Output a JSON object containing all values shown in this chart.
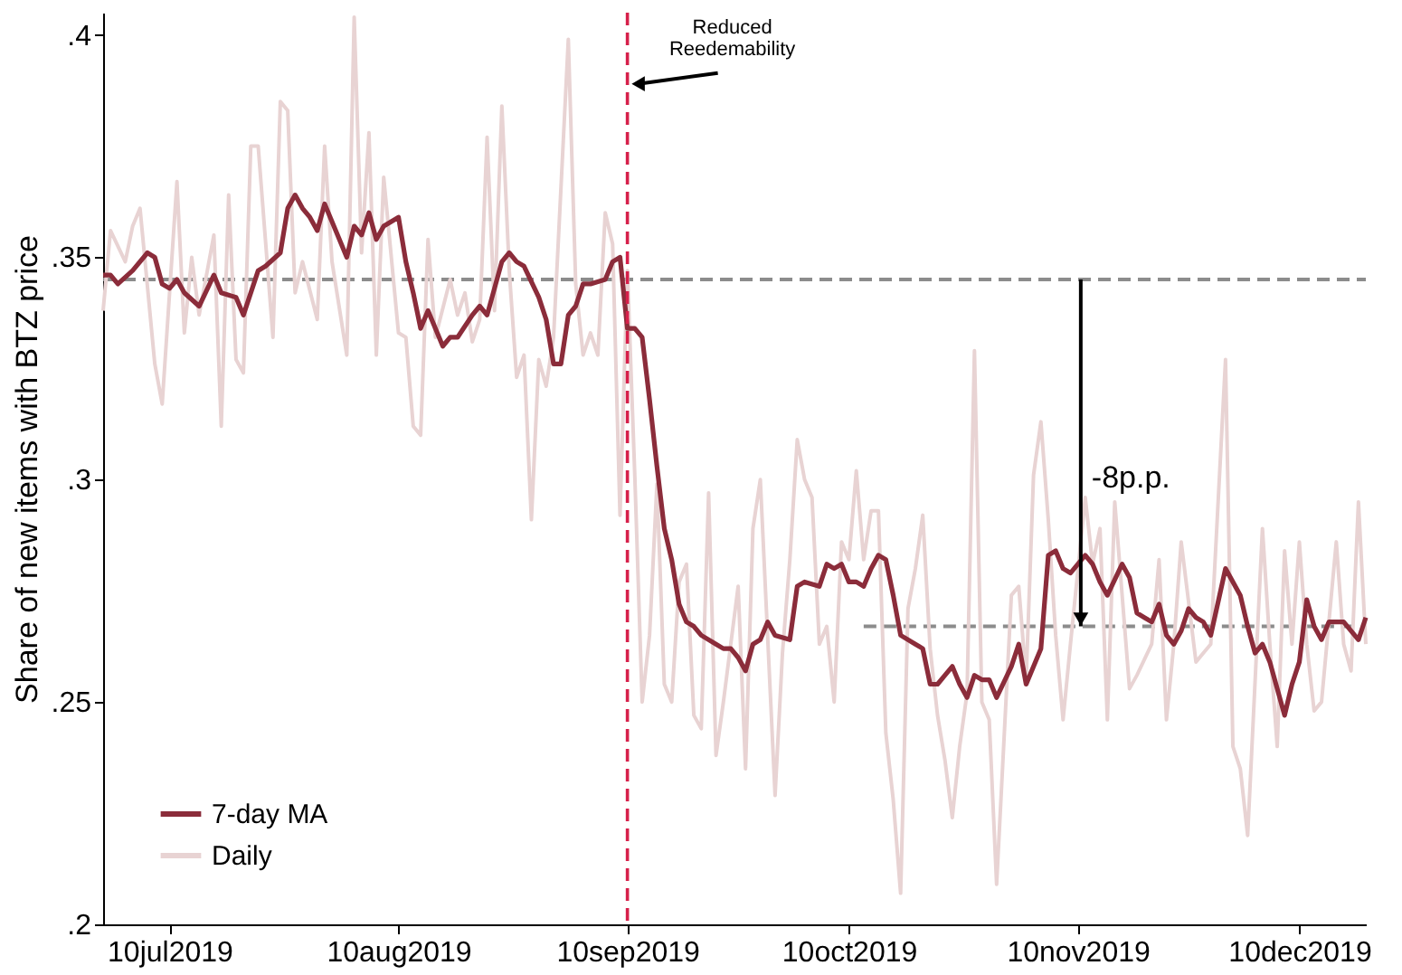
{
  "chart_data": {
    "type": "line",
    "ylabel": "Share of new items with BTZ price",
    "xlim": [
      "2019-07-01",
      "2019-12-19"
    ],
    "xticks": [
      {
        "value": "2019-07-10",
        "label": "10jul2019"
      },
      {
        "value": "2019-08-10",
        "label": "10aug2019"
      },
      {
        "value": "2019-09-10",
        "label": "10sep2019"
      },
      {
        "value": "2019-10-10",
        "label": "10oct2019"
      },
      {
        "value": "2019-11-10",
        "label": "10nov2019"
      },
      {
        "value": "2019-12-10",
        "label": "10dec2019"
      }
    ],
    "ylim": [
      0.2,
      0.405
    ],
    "yticks": [
      {
        "value": 0.2,
        "label": ".2"
      },
      {
        "value": 0.25,
        "label": ".25"
      },
      {
        "value": 0.3,
        "label": ".3"
      },
      {
        "value": 0.35,
        "label": ".35"
      },
      {
        "value": 0.4,
        "label": ".4"
      }
    ],
    "grid": false,
    "legend": "bottom left",
    "series": [
      {
        "name": "7-day MA",
        "color": "#8b2c3a",
        "line_style": "solid",
        "x": [
          "2019-07-01",
          "2019-07-02",
          "2019-07-03",
          "2019-07-05",
          "2019-07-07",
          "2019-07-08",
          "2019-07-09",
          "2019-07-10",
          "2019-07-11",
          "2019-07-12",
          "2019-07-14",
          "2019-07-16",
          "2019-07-17",
          "2019-07-19",
          "2019-07-20",
          "2019-07-22",
          "2019-07-23",
          "2019-07-25",
          "2019-07-26",
          "2019-07-27",
          "2019-07-28",
          "2019-07-29",
          "2019-07-30",
          "2019-07-31",
          "2019-08-02",
          "2019-08-03",
          "2019-08-04",
          "2019-08-05",
          "2019-08-06",
          "2019-08-07",
          "2019-08-08",
          "2019-08-10",
          "2019-08-11",
          "2019-08-12",
          "2019-08-13",
          "2019-08-14",
          "2019-08-16",
          "2019-08-17",
          "2019-08-18",
          "2019-08-20",
          "2019-08-21",
          "2019-08-22",
          "2019-08-23",
          "2019-08-24",
          "2019-08-25",
          "2019-08-26",
          "2019-08-27",
          "2019-08-29",
          "2019-08-30",
          "2019-08-31",
          "2019-09-01",
          "2019-09-02",
          "2019-09-03",
          "2019-09-04",
          "2019-09-05",
          "2019-09-07",
          "2019-09-08",
          "2019-09-09",
          "2019-09-10",
          "2019-09-11",
          "2019-09-12",
          "2019-09-13",
          "2019-09-14",
          "2019-09-15",
          "2019-09-16",
          "2019-09-17",
          "2019-09-18",
          "2019-09-19",
          "2019-09-20",
          "2019-09-22",
          "2019-09-23",
          "2019-09-24",
          "2019-09-25",
          "2019-09-26",
          "2019-09-27",
          "2019-09-28",
          "2019-09-29",
          "2019-09-30",
          "2019-10-02",
          "2019-10-03",
          "2019-10-04",
          "2019-10-06",
          "2019-10-07",
          "2019-10-08",
          "2019-10-09",
          "2019-10-10",
          "2019-10-11",
          "2019-10-12",
          "2019-10-13",
          "2019-10-14",
          "2019-10-15",
          "2019-10-16",
          "2019-10-17",
          "2019-10-19",
          "2019-10-20",
          "2019-10-21",
          "2019-10-22",
          "2019-10-23",
          "2019-10-24",
          "2019-10-25",
          "2019-10-26",
          "2019-10-27",
          "2019-10-28",
          "2019-10-29",
          "2019-10-30",
          "2019-11-01",
          "2019-11-02",
          "2019-11-03",
          "2019-11-05",
          "2019-11-06",
          "2019-11-07",
          "2019-11-08",
          "2019-11-09",
          "2019-11-11",
          "2019-11-12",
          "2019-11-13",
          "2019-11-14",
          "2019-11-16",
          "2019-11-17",
          "2019-11-18",
          "2019-11-19",
          "2019-11-20",
          "2019-11-21",
          "2019-11-22",
          "2019-11-23",
          "2019-11-24",
          "2019-11-25",
          "2019-11-26",
          "2019-11-27",
          "2019-11-28",
          "2019-11-30",
          "2019-12-02",
          "2019-12-03",
          "2019-12-04",
          "2019-12-05",
          "2019-12-06",
          "2019-12-08",
          "2019-12-09",
          "2019-12-10",
          "2019-12-11",
          "2019-12-12",
          "2019-12-13",
          "2019-12-14",
          "2019-12-16",
          "2019-12-18",
          "2019-12-19"
        ],
        "values": [
          0.346,
          0.346,
          0.344,
          0.347,
          0.351,
          0.35,
          0.344,
          0.343,
          0.345,
          0.342,
          0.339,
          0.346,
          0.342,
          0.341,
          0.337,
          0.347,
          0.348,
          0.351,
          0.361,
          0.364,
          0.361,
          0.359,
          0.356,
          0.362,
          0.354,
          0.35,
          0.357,
          0.355,
          0.36,
          0.354,
          0.357,
          0.359,
          0.349,
          0.342,
          0.334,
          0.338,
          0.33,
          0.332,
          0.332,
          0.337,
          0.339,
          0.337,
          0.343,
          0.349,
          0.351,
          0.349,
          0.348,
          0.341,
          0.336,
          0.326,
          0.326,
          0.337,
          0.339,
          0.344,
          0.344,
          0.345,
          0.349,
          0.35,
          0.334,
          0.334,
          0.332,
          0.318,
          0.303,
          0.289,
          0.282,
          0.272,
          0.268,
          0.267,
          0.265,
          0.263,
          0.262,
          0.262,
          0.26,
          0.257,
          0.263,
          0.264,
          0.268,
          0.265,
          0.264,
          0.276,
          0.277,
          0.276,
          0.281,
          0.28,
          0.281,
          0.277,
          0.277,
          0.276,
          0.28,
          0.283,
          0.282,
          0.274,
          0.265,
          0.263,
          0.262,
          0.254,
          0.254,
          0.256,
          0.258,
          0.254,
          0.251,
          0.256,
          0.255,
          0.255,
          0.251,
          0.258,
          0.263,
          0.254,
          0.262,
          0.283,
          0.284,
          0.28,
          0.279,
          0.283,
          0.281,
          0.277,
          0.274,
          0.281,
          0.278,
          0.27,
          0.269,
          0.268,
          0.272,
          0.265,
          0.263,
          0.266,
          0.271,
          0.269,
          0.268,
          0.265,
          0.28,
          0.274,
          0.267,
          0.261,
          0.263,
          0.259,
          0.247,
          0.254,
          0.259,
          0.273,
          0.267,
          0.264,
          0.268,
          0.268,
          0.264,
          0.269
        ]
      },
      {
        "name": "Daily",
        "color": "#e8d3d3",
        "line_style": "solid",
        "x": [
          "2019-07-01",
          "2019-07-02",
          "2019-07-04",
          "2019-07-05",
          "2019-07-06",
          "2019-07-08",
          "2019-07-09",
          "2019-07-11",
          "2019-07-12",
          "2019-07-13",
          "2019-07-14",
          "2019-07-16",
          "2019-07-17",
          "2019-07-18",
          "2019-07-19",
          "2019-07-20",
          "2019-07-21",
          "2019-07-22",
          "2019-07-24",
          "2019-07-25",
          "2019-07-26",
          "2019-07-27",
          "2019-07-28",
          "2019-07-30",
          "2019-07-31",
          "2019-08-01",
          "2019-08-03",
          "2019-08-04",
          "2019-08-05",
          "2019-08-06",
          "2019-08-07",
          "2019-08-08",
          "2019-08-10",
          "2019-08-11",
          "2019-08-12",
          "2019-08-13",
          "2019-08-14",
          "2019-08-15",
          "2019-08-17",
          "2019-08-18",
          "2019-08-19",
          "2019-08-20",
          "2019-08-21",
          "2019-08-22",
          "2019-08-23",
          "2019-08-24",
          "2019-08-25",
          "2019-08-26",
          "2019-08-27",
          "2019-08-28",
          "2019-08-29",
          "2019-08-30",
          "2019-08-31",
          "2019-09-02",
          "2019-09-03",
          "2019-09-04",
          "2019-09-05",
          "2019-09-06",
          "2019-09-07",
          "2019-09-08",
          "2019-09-09",
          "2019-09-10",
          "2019-09-11",
          "2019-09-12",
          "2019-09-13",
          "2019-09-14",
          "2019-09-15",
          "2019-09-16",
          "2019-09-17",
          "2019-09-18",
          "2019-09-19",
          "2019-09-20",
          "2019-09-21",
          "2019-09-22",
          "2019-09-23",
          "2019-09-25",
          "2019-09-26",
          "2019-09-27",
          "2019-09-28",
          "2019-09-30",
          "2019-10-01",
          "2019-10-02",
          "2019-10-03",
          "2019-10-04",
          "2019-10-05",
          "2019-10-06",
          "2019-10-07",
          "2019-10-08",
          "2019-10-09",
          "2019-10-10",
          "2019-10-11",
          "2019-10-12",
          "2019-10-13",
          "2019-10-14",
          "2019-10-15",
          "2019-10-16",
          "2019-10-17",
          "2019-10-18",
          "2019-10-19",
          "2019-10-20",
          "2019-10-21",
          "2019-10-22",
          "2019-10-23",
          "2019-10-24",
          "2019-10-25",
          "2019-10-26",
          "2019-10-27",
          "2019-10-28",
          "2019-10-29",
          "2019-10-30",
          "2019-11-01",
          "2019-11-02",
          "2019-11-03",
          "2019-11-04",
          "2019-11-05",
          "2019-11-06",
          "2019-11-07",
          "2019-11-08",
          "2019-11-09",
          "2019-11-11",
          "2019-11-12",
          "2019-11-13",
          "2019-11-14",
          "2019-11-15",
          "2019-11-17",
          "2019-11-18",
          "2019-11-20",
          "2019-11-21",
          "2019-11-22",
          "2019-11-23",
          "2019-11-24",
          "2019-11-26",
          "2019-11-27",
          "2019-11-28",
          "2019-11-30",
          "2019-12-01",
          "2019-12-02",
          "2019-12-03",
          "2019-12-05",
          "2019-12-06",
          "2019-12-07",
          "2019-12-08",
          "2019-12-09",
          "2019-12-10",
          "2019-12-11",
          "2019-12-12",
          "2019-12-13",
          "2019-12-15",
          "2019-12-16",
          "2019-12-17",
          "2019-12-18",
          "2019-12-19"
        ],
        "values": [
          0.338,
          0.356,
          0.349,
          0.357,
          0.361,
          0.326,
          0.317,
          0.367,
          0.333,
          0.35,
          0.337,
          0.355,
          0.312,
          0.364,
          0.327,
          0.324,
          0.375,
          0.375,
          0.332,
          0.385,
          0.383,
          0.342,
          0.349,
          0.336,
          0.375,
          0.349,
          0.328,
          0.404,
          0.351,
          0.378,
          0.328,
          0.368,
          0.333,
          0.332,
          0.312,
          0.31,
          0.354,
          0.332,
          0.345,
          0.337,
          0.342,
          0.331,
          0.336,
          0.377,
          0.338,
          0.384,
          0.347,
          0.323,
          0.328,
          0.291,
          0.327,
          0.321,
          0.332,
          0.399,
          0.344,
          0.328,
          0.333,
          0.328,
          0.36,
          0.353,
          0.292,
          0.347,
          0.301,
          0.25,
          0.265,
          0.299,
          0.254,
          0.25,
          0.277,
          0.281,
          0.247,
          0.244,
          0.297,
          0.238,
          0.25,
          0.276,
          0.235,
          0.289,
          0.3,
          0.229,
          0.261,
          0.282,
          0.309,
          0.3,
          0.296,
          0.263,
          0.267,
          0.25,
          0.286,
          0.282,
          0.302,
          0.282,
          0.293,
          0.293,
          0.243,
          0.228,
          0.207,
          0.271,
          0.28,
          0.292,
          0.262,
          0.247,
          0.237,
          0.224,
          0.24,
          0.252,
          0.329,
          0.25,
          0.246,
          0.209,
          0.274,
          0.276,
          0.255,
          0.301,
          0.313,
          0.291,
          0.265,
          0.246,
          0.263,
          0.296,
          0.281,
          0.289,
          0.246,
          0.295,
          0.253,
          0.256,
          0.263,
          0.282,
          0.246,
          0.263,
          0.286,
          0.259,
          0.261,
          0.263,
          0.327,
          0.24,
          0.235,
          0.22,
          0.289,
          0.263,
          0.24,
          0.284,
          0.263,
          0.286,
          0.263,
          0.248,
          0.25,
          0.286,
          0.263,
          0.257,
          0.295,
          0.263
        ]
      },
      {
        "color": "#8c8c8c",
        "line_style": "dashed",
        "x": [
          "2019-07-01",
          "2019-12-19"
        ],
        "values": [
          0.345,
          0.345
        ]
      },
      {
        "color": "#8c8c8c",
        "line_style": "dashed",
        "x": [
          "2019-10-12",
          "2019-12-19"
        ],
        "values": [
          0.267,
          0.267
        ]
      }
    ],
    "ref_lines": [
      {
        "axis": "x",
        "value": "2019-09-10",
        "color": "#d6204a",
        "line_style": "dashed"
      }
    ],
    "annotations": [
      {
        "text": "Reduced Reedemability",
        "x": "2019-09-10",
        "y": 0.389
      },
      "-8p.p."
    ]
  }
}
